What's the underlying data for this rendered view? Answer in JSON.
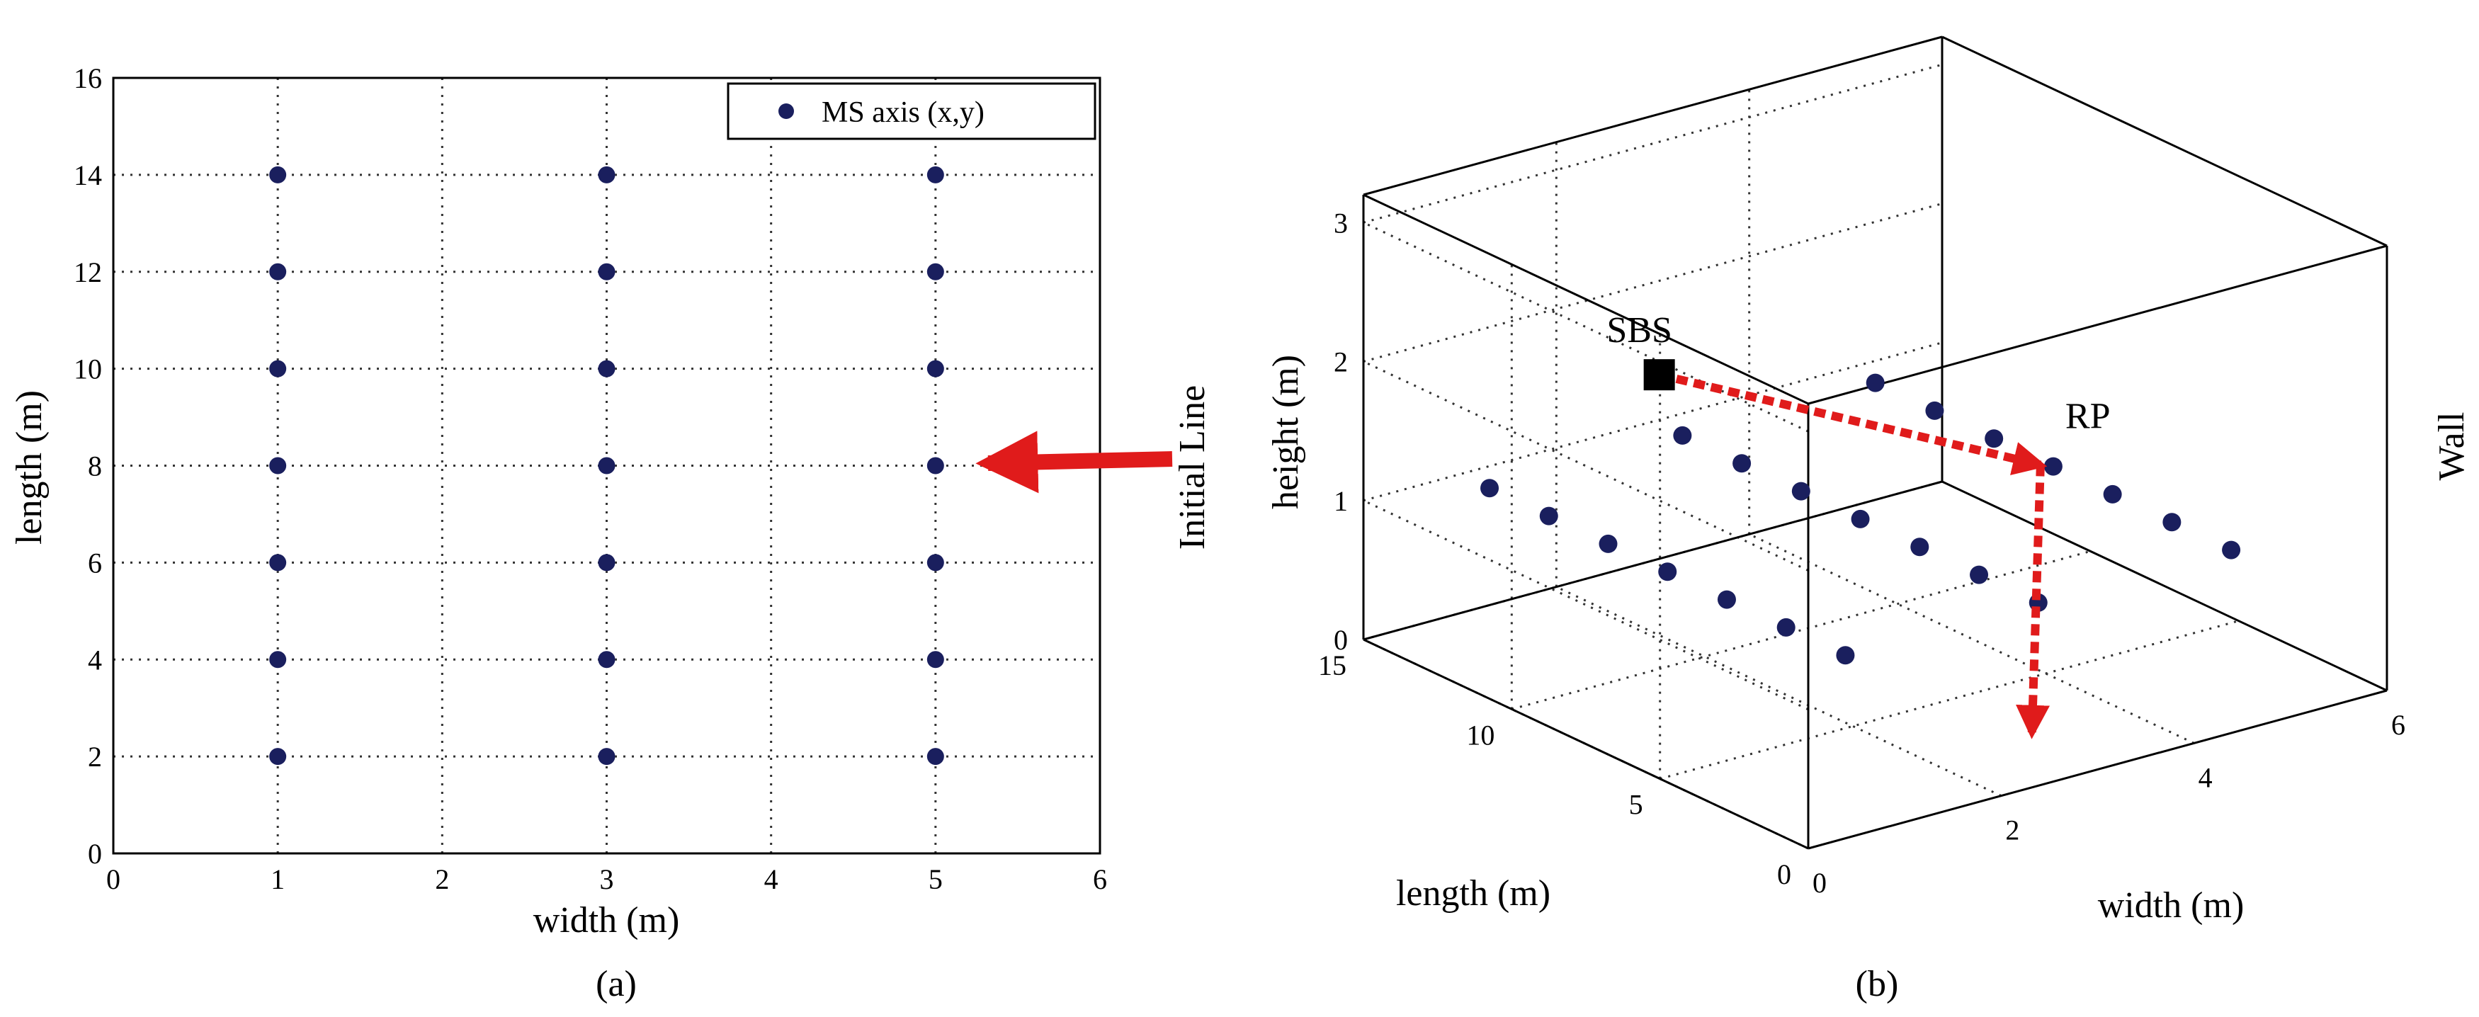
{
  "chart_data": [
    {
      "type": "scatter",
      "panel_label": "(a)",
      "xlabel": "width (m)",
      "ylabel": "length (m)",
      "xlim": [
        0,
        6
      ],
      "ylim": [
        0,
        16
      ],
      "xticks": [
        0,
        1,
        2,
        3,
        4,
        5,
        6
      ],
      "yticks": [
        0,
        2,
        4,
        6,
        8,
        10,
        12,
        14,
        16
      ],
      "grid": true,
      "legend": {
        "position": "top-right",
        "entries": [
          "MS axis (x,y)"
        ]
      },
      "series": [
        {
          "name": "MS axis (x,y)",
          "color": "#1a1f5e",
          "points": [
            [
              1,
              2
            ],
            [
              1,
              4
            ],
            [
              1,
              6
            ],
            [
              1,
              8
            ],
            [
              1,
              10
            ],
            [
              1,
              12
            ],
            [
              1,
              14
            ],
            [
              3,
              2
            ],
            [
              3,
              4
            ],
            [
              3,
              6
            ],
            [
              3,
              8
            ],
            [
              3,
              10
            ],
            [
              3,
              12
            ],
            [
              3,
              14
            ],
            [
              5,
              2
            ],
            [
              5,
              4
            ],
            [
              5,
              6
            ],
            [
              5,
              8
            ],
            [
              5,
              10
            ],
            [
              5,
              12
            ],
            [
              5,
              14
            ]
          ]
        }
      ],
      "annotations": [
        {
          "text": "Initial Line",
          "arrow_to": [
            5,
            8
          ],
          "color": "#e01b1b"
        }
      ]
    },
    {
      "type": "scatter3d",
      "panel_label": "(b)",
      "xlabel": "width (m)",
      "ylabel": "length (m)",
      "zlabel": "height (m)",
      "xlim": [
        0,
        6
      ],
      "ylim": [
        0,
        15
      ],
      "zlim": [
        0,
        3.2
      ],
      "xticks": [
        "0",
        "2",
        "4",
        "6"
      ],
      "yticks": [
        "0",
        "5",
        "10",
        "15"
      ],
      "zticks": [
        "0",
        "1",
        "2",
        "3"
      ],
      "grid": true,
      "side_label": "Wall",
      "sbs_label": "SBS",
      "rp_label": "RP",
      "sbs": [
        0.3,
        6,
        2.75
      ],
      "rp": [
        2.9,
        1.6,
        2.05
      ],
      "route_target": [
        2.35,
        0.1,
        0.38
      ],
      "route_color": "#e01b1b",
      "points_color": "#1a1f5e",
      "points": [
        [
          1,
          14,
          1
        ],
        [
          1,
          12,
          1
        ],
        [
          1,
          10,
          1
        ],
        [
          1,
          8,
          1
        ],
        [
          1,
          6,
          1
        ],
        [
          1,
          4,
          1
        ],
        [
          1,
          2,
          1
        ],
        [
          3,
          14,
          1
        ],
        [
          3,
          12,
          1
        ],
        [
          3,
          10,
          1
        ],
        [
          3,
          8,
          1
        ],
        [
          3,
          6,
          1
        ],
        [
          3,
          4,
          1
        ],
        [
          3,
          2,
          1
        ],
        [
          5,
          14,
          1
        ],
        [
          5,
          12,
          1
        ],
        [
          5,
          10,
          1
        ],
        [
          5,
          8,
          1
        ],
        [
          5,
          6,
          1
        ],
        [
          5,
          4,
          1
        ],
        [
          5,
          2,
          1
        ]
      ]
    }
  ]
}
